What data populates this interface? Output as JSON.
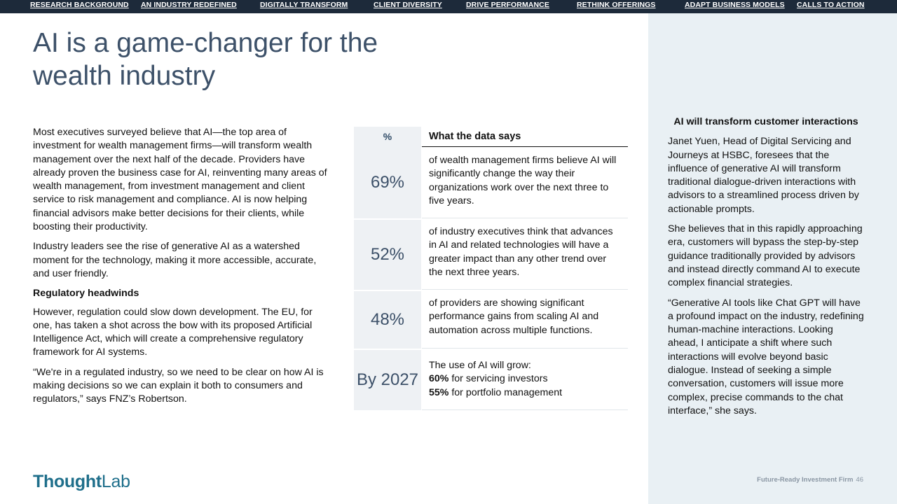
{
  "nav": [
    "RESEARCH BACKGROUND",
    "AN INDUSTRY REDEFINED",
    "DIGITALLY TRANSFORM",
    "CLIENT DIVERSITY",
    "DRIVE PERFORMANCE",
    "RETHINK OFFERINGS",
    "ADAPT BUSINESS MODELS",
    "CALLS TO ACTION"
  ],
  "title": "AI is a game-changer for the wealth industry",
  "left": {
    "p1": "Most executives surveyed believe that AI—the top area of investment for wealth management firms—will transform wealth management over the next half of the decade. Providers have already proven the business case for AI, reinventing many areas of wealth management, from investment management and client service to risk management and compliance. AI is now helping financial advisors make better decisions for their clients, while boosting their productivity.",
    "p2": "Industry leaders see the rise of generative AI as a watershed moment for the technology, making it more accessible, accurate, and user friendly.",
    "subhead": "Regulatory headwinds",
    "p3": "However, regulation could slow down development. The EU, for one, has taken a shot across the bow with its proposed Artificial Intelligence Act, which will create a comprehensive regulatory framework for AI systems.",
    "p4": "“We're in a regulated industry, so we need to be clear on how AI is making decisions so we can explain it both to consumers and regulators,” says FNZ’s Robertson."
  },
  "table": {
    "col1": "%",
    "col2": "What the data says",
    "rows": [
      {
        "num": "69%",
        "text": "of wealth management firms believe AI will significantly change the way their organizations work over the next three to five years."
      },
      {
        "num": "52%",
        "text": "of industry executives think that advances in AI and related technologies will have a greater impact than any other trend over the next three years."
      },
      {
        "num": "48%",
        "text": "of providers are showing significant performance gains from scaling AI and automation across multiple functions."
      }
    ],
    "last": {
      "num": "By 2027",
      "lead": "The use of AI will grow:",
      "v1": "60%",
      "t1": " for servicing investors",
      "v2": "55%",
      "t2": " for portfolio management"
    }
  },
  "sidebar": {
    "heading": "AI will transform customer interactions",
    "p1": "Janet Yuen, Head of Digital Servicing and Journeys at HSBC, foresees that the influence of generative AI will transform traditional dialogue-driven interactions with advisors to a streamlined process driven by actionable prompts.",
    "p2": "She believes that in this rapidly approaching era, customers will bypass the step-by-step guidance traditionally provided by advisors and instead directly command AI to execute complex financial strategies.",
    "p3": "“Generative AI tools like Chat GPT will have a profound impact on the industry, redefining human-machine interactions. Looking ahead, I anticipate a shift where such interactions will evolve beyond basic dialogue. Instead of seeking a simple conversation, customers will issue more complex, precise commands to the chat interface,” she says."
  },
  "logo": {
    "bold": "Thought",
    "light": "Lab"
  },
  "footer": {
    "text": "Future-Ready Investment Firm",
    "page": "46"
  },
  "colors": {
    "nav_bg": "#1d2a3a",
    "title": "#3d5169",
    "sidebar_bg": "#e9f0f4",
    "logo": "#1f6f8b"
  }
}
